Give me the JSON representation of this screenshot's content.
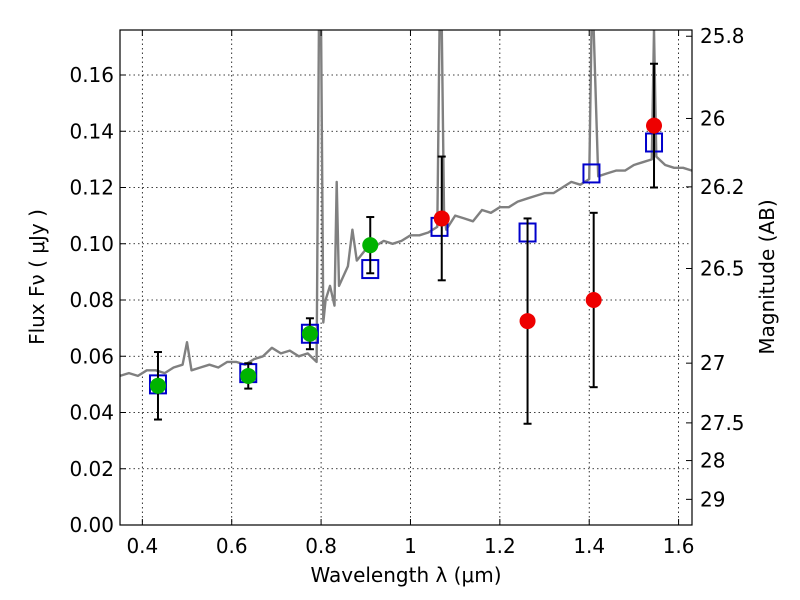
{
  "chart_data": {
    "type": "scatter",
    "title": "",
    "xlabel": "Wavelength  λ (μm)",
    "ylabel": "Flux  Fν  ( μJy )",
    "y2label": "Magnitude (AB)",
    "xlim": [
      0.35,
      1.63
    ],
    "ylim": [
      0.0,
      0.176
    ],
    "grid": true,
    "xticks": [
      0.4,
      0.6,
      0.8,
      1.0,
      1.2,
      1.4,
      1.6
    ],
    "xtick_labels": [
      "0.4",
      "0.6",
      "0.8",
      "1",
      "1.2",
      "1.4",
      "1.6"
    ],
    "yticks": [
      0.0,
      0.02,
      0.04,
      0.06,
      0.08,
      0.1,
      0.12,
      0.14,
      0.16
    ],
    "ytick_labels": [
      "0.00",
      "0.02",
      "0.04",
      "0.06",
      "0.08",
      "0.10",
      "0.12",
      "0.14",
      "0.16"
    ],
    "y2ticks": [
      25.8,
      26,
      26.2,
      26.5,
      27,
      27.5,
      28,
      29
    ],
    "y2tick_labels": [
      "25.8",
      "26",
      "26.2",
      "26.5",
      "27",
      "27.5",
      "28",
      "29"
    ],
    "series": [
      {
        "kind": "line",
        "color": "#808080",
        "x": [
          0.35,
          0.37,
          0.39,
          0.41,
          0.43,
          0.45,
          0.47,
          0.49,
          0.5,
          0.51,
          0.53,
          0.55,
          0.57,
          0.59,
          0.61,
          0.63,
          0.65,
          0.67,
          0.69,
          0.71,
          0.73,
          0.75,
          0.77,
          0.79,
          0.795,
          0.8,
          0.805,
          0.81,
          0.82,
          0.83,
          0.835,
          0.84,
          0.86,
          0.87,
          0.88,
          0.9,
          0.92,
          0.94,
          0.96,
          0.98,
          1.0,
          1.02,
          1.04,
          1.06,
          1.065,
          1.07,
          1.075,
          1.08,
          1.1,
          1.12,
          1.14,
          1.16,
          1.18,
          1.2,
          1.22,
          1.24,
          1.26,
          1.28,
          1.3,
          1.32,
          1.34,
          1.36,
          1.38,
          1.4,
          1.405,
          1.41,
          1.42,
          1.44,
          1.46,
          1.48,
          1.5,
          1.52,
          1.54,
          1.545,
          1.55,
          1.57,
          1.59,
          1.61,
          1.63
        ],
        "y": [
          0.053,
          0.054,
          0.053,
          0.055,
          0.055,
          0.054,
          0.056,
          0.057,
          0.065,
          0.055,
          0.056,
          0.057,
          0.056,
          0.058,
          0.058,
          0.057,
          0.059,
          0.06,
          0.063,
          0.061,
          0.062,
          0.06,
          0.061,
          0.058,
          0.176,
          0.176,
          0.072,
          0.08,
          0.085,
          0.078,
          0.122,
          0.085,
          0.092,
          0.105,
          0.094,
          0.098,
          0.099,
          0.101,
          0.1,
          0.101,
          0.103,
          0.103,
          0.104,
          0.106,
          0.176,
          0.176,
          0.112,
          0.105,
          0.11,
          0.109,
          0.108,
          0.112,
          0.111,
          0.113,
          0.113,
          0.115,
          0.116,
          0.117,
          0.118,
          0.118,
          0.12,
          0.122,
          0.121,
          0.123,
          0.176,
          0.176,
          0.124,
          0.125,
          0.126,
          0.126,
          0.128,
          0.129,
          0.13,
          0.176,
          0.131,
          0.128,
          0.127,
          0.127,
          0.126
        ]
      },
      {
        "kind": "open-square",
        "color": "#0000cc",
        "x": [
          0.435,
          0.637,
          0.775,
          0.91,
          1.065,
          1.262,
          1.405,
          1.545
        ],
        "y": [
          0.05,
          0.054,
          0.068,
          0.091,
          0.106,
          0.104,
          0.125,
          0.136
        ]
      },
      {
        "kind": "filled-circle",
        "color": "#00b300",
        "x": [
          0.435,
          0.637,
          0.775,
          0.91
        ],
        "y": [
          0.0495,
          0.053,
          0.068,
          0.0995
        ],
        "yerr": [
          0.012,
          0.0045,
          0.0055,
          0.01
        ]
      },
      {
        "kind": "filled-circle",
        "color": "#ee0000",
        "x": [
          1.07,
          1.262,
          1.41,
          1.545
        ],
        "y": [
          0.109,
          0.0725,
          0.08,
          0.142
        ],
        "yerr": [
          0.022,
          0.0365,
          0.031,
          0.022
        ]
      }
    ]
  }
}
